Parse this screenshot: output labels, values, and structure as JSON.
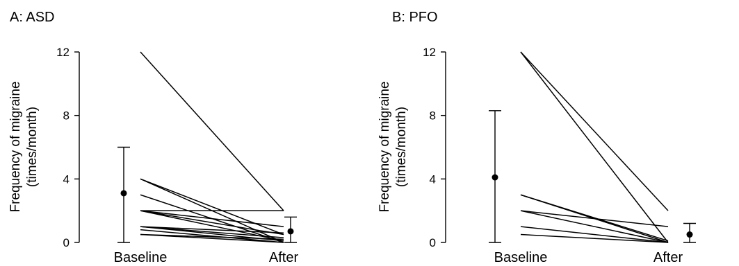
{
  "chart_data": [
    {
      "panel_title": "A: ASD",
      "type": "line",
      "ylabel": [
        "Frequency of migraine",
        "(times/month)"
      ],
      "xlabel": "",
      "categories": [
        "Baseline",
        "After"
      ],
      "yticks": [
        0,
        4,
        8,
        12
      ],
      "ylim": [
        0,
        12
      ],
      "grid": false,
      "patients": [
        {
          "values": [
            12,
            2
          ]
        },
        {
          "values": [
            4,
            0.5
          ]
        },
        {
          "values": [
            4,
            0
          ]
        },
        {
          "values": [
            3,
            0
          ]
        },
        {
          "values": [
            2,
            2
          ]
        },
        {
          "values": [
            2,
            1
          ]
        },
        {
          "values": [
            2,
            0.5
          ]
        },
        {
          "values": [
            2,
            0.1
          ]
        },
        {
          "values": [
            1,
            0.6
          ]
        },
        {
          "values": [
            1,
            0.3
          ]
        },
        {
          "values": [
            1,
            0.1
          ]
        },
        {
          "values": [
            0.8,
            0
          ]
        },
        {
          "values": [
            0.5,
            0.2
          ]
        },
        {
          "values": [
            0.5,
            0
          ]
        }
      ],
      "summary": {
        "Baseline": {
          "mean": 3.1,
          "lower": 0.0,
          "upper": 6.0
        },
        "After": {
          "mean": 0.7,
          "lower": 0.0,
          "upper": 1.6
        }
      }
    },
    {
      "panel_title": "B: PFO",
      "type": "line",
      "ylabel": [
        "Frequency of migraine",
        "(times/month)"
      ],
      "xlabel": "",
      "categories": [
        "Baseline",
        "After"
      ],
      "yticks": [
        0,
        4,
        8,
        12
      ],
      "ylim": [
        0,
        12
      ],
      "grid": false,
      "patients": [
        {
          "values": [
            12,
            2
          ]
        },
        {
          "values": [
            12,
            0
          ]
        },
        {
          "values": [
            3,
            0.1
          ]
        },
        {
          "values": [
            3,
            0
          ]
        },
        {
          "values": [
            2,
            1
          ]
        },
        {
          "values": [
            2,
            0
          ]
        },
        {
          "values": [
            1,
            0
          ]
        },
        {
          "values": [
            0.5,
            0
          ]
        }
      ],
      "summary": {
        "Baseline": {
          "mean": 4.1,
          "lower": 0.0,
          "upper": 8.3
        },
        "After": {
          "mean": 0.5,
          "lower": 0.0,
          "upper": 1.2
        }
      }
    }
  ]
}
